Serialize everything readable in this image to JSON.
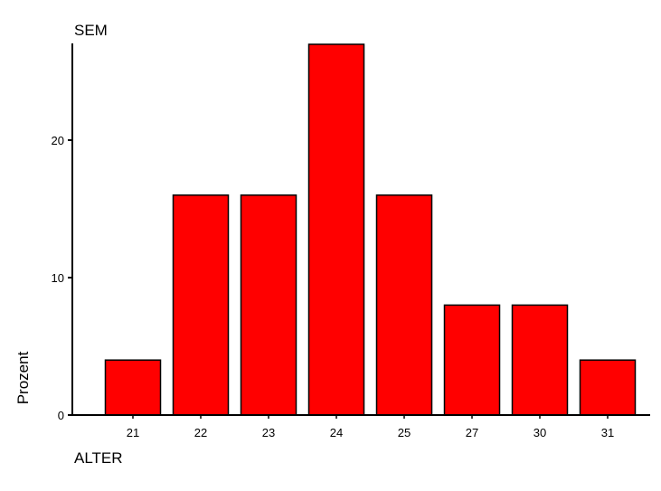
{
  "chart_data": {
    "type": "bar",
    "title": "SEM",
    "xlabel": "ALTER",
    "ylabel": "Prozent",
    "categories": [
      "21",
      "22",
      "23",
      "24",
      "25",
      "27",
      "30",
      "31"
    ],
    "values": [
      4,
      16,
      16,
      27,
      16,
      8,
      8,
      4
    ],
    "yticks": [
      "0",
      "10",
      "20"
    ],
    "ylim": [
      0,
      27
    ],
    "grid": false,
    "legend": "none",
    "bar_color": "#ff0000",
    "bar_edge_color": "#000000"
  }
}
